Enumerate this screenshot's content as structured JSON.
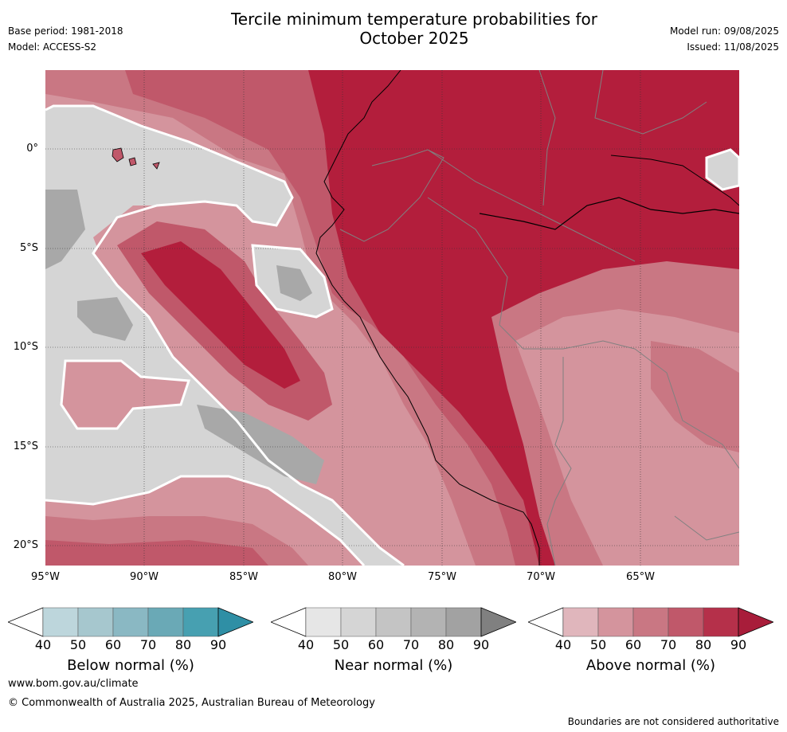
{
  "header": {
    "title_line1": "Tercile minimum temperature probabilities for",
    "title_line2": "October 2025",
    "base_period": "Base period: 1981-2018",
    "model": "Model: ACCESS-S2",
    "model_run": "Model run: 09/08/2025",
    "issued": "Issued: 11/08/2025"
  },
  "map": {
    "lat_labels": [
      "0°",
      "5°S",
      "10°S",
      "15°S",
      "20°S"
    ],
    "lon_labels": [
      "95°W",
      "90°W",
      "85°W",
      "80°W",
      "75°W",
      "70°W",
      "65°W"
    ]
  },
  "colorbars": [
    {
      "name": "Below normal (%)",
      "ticks": [
        "40",
        "50",
        "60",
        "70",
        "80",
        "90"
      ],
      "colors": [
        "#ffffff",
        "#bdd6dc",
        "#a6c7ce",
        "#8ab8c3",
        "#6aa9b6",
        "#47a0b1",
        "#2f8fa5"
      ]
    },
    {
      "name": "Near normal (%)",
      "ticks": [
        "40",
        "50",
        "60",
        "70",
        "80",
        "90"
      ],
      "colors": [
        "#ffffff",
        "#e6e6e6",
        "#d5d5d5",
        "#c4c4c4",
        "#b3b3b3",
        "#a2a2a2",
        "#808080"
      ]
    },
    {
      "name": "Above normal (%)",
      "ticks": [
        "40",
        "50",
        "60",
        "70",
        "80",
        "90"
      ],
      "colors": [
        "#ffffff",
        "#e0b6bc",
        "#d4949d",
        "#c97783",
        "#c0586a",
        "#b5304a",
        "#a81d3a"
      ]
    }
  ],
  "footer": {
    "url": "www.bom.gov.au/climate",
    "copyright": "© Commonwealth of Australia 2025, Australian Bureau of Meteorology",
    "disclaimer": "Boundaries are not considered authoritative"
  }
}
